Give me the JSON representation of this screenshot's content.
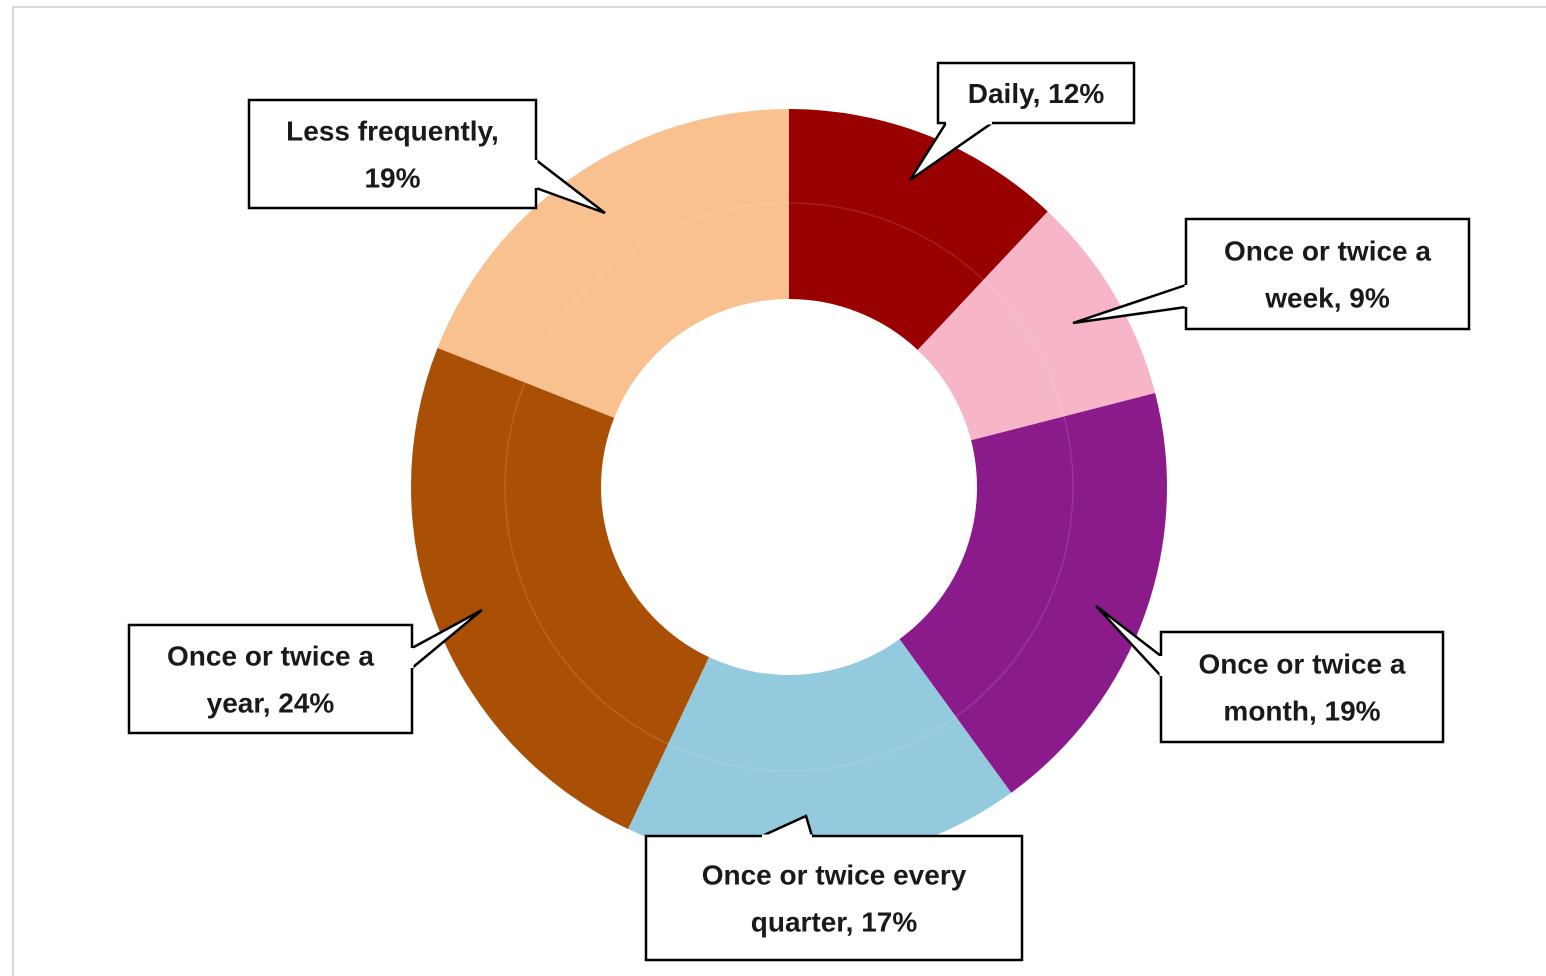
{
  "chart_data": {
    "type": "pie",
    "variant": "donut",
    "title": "",
    "start_angle_deg": 0,
    "direction": "clockwise",
    "slices": [
      {
        "label": "Daily",
        "value": 12,
        "percent_label": "12%",
        "color": "#990000",
        "callout_lines": [
          "Daily, 12%"
        ]
      },
      {
        "label": "Once or twice a week",
        "value": 9,
        "percent_label": "9%",
        "color": "#f7b6c8",
        "callout_lines": [
          "Once or twice a",
          "week, 9%"
        ]
      },
      {
        "label": "Once or twice a month",
        "value": 19,
        "percent_label": "19%",
        "color": "#8b1a8b",
        "callout_lines": [
          "Once or twice a",
          "month, 19%"
        ]
      },
      {
        "label": "Once or twice every quarter",
        "value": 17,
        "percent_label": "17%",
        "color": "#94cadd",
        "callout_lines": [
          "Once or twice every",
          "quarter, 17%"
        ]
      },
      {
        "label": "Once or twice a year",
        "value": 24,
        "percent_label": "24%",
        "color": "#aa5006",
        "callout_lines": [
          "Once or twice a",
          "year, 24%"
        ]
      },
      {
        "label": "Less frequently",
        "value": 19,
        "percent_label": "19%",
        "color": "#f9c190",
        "callout_lines": [
          "Less frequently,",
          "19%"
        ]
      }
    ],
    "legend": "none",
    "data_labels": "callouts"
  }
}
